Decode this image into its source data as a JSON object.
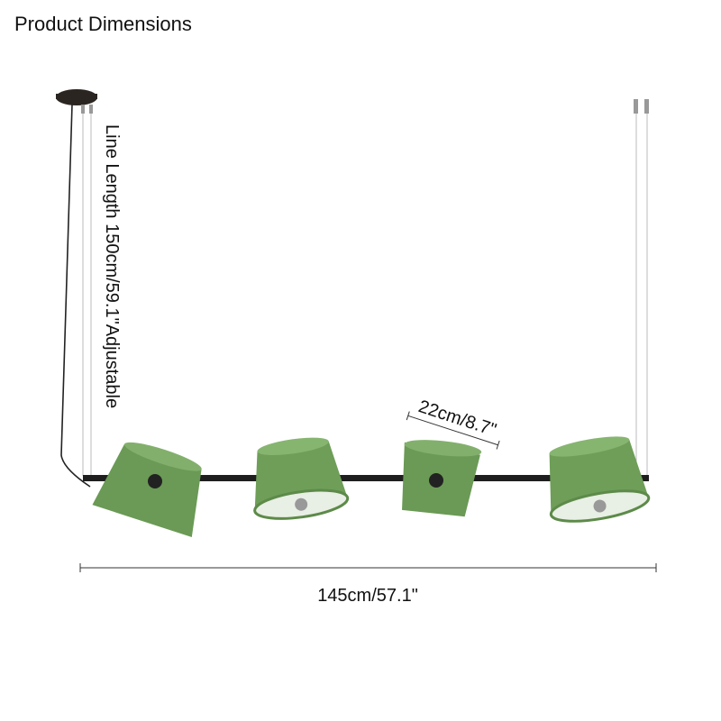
{
  "header": {
    "title": "Product Dimensions"
  },
  "dimensions": {
    "line_length": "Line Length 150cm/59.1\"Adjustable",
    "shade_width": "22cm/8.7\"",
    "total_width": "145cm/57.1\""
  }
}
